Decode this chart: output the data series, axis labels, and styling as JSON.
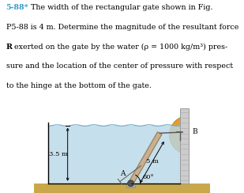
{
  "fig_bg": "#ffffff",
  "water_color": "#b8d8e8",
  "ground_color": "#c8a84b",
  "gate_color": "#c8b090",
  "gate_edge_color": "#9a8060",
  "wall_face_color": "#cccccc",
  "wall_edge_color": "#999999",
  "semi_color": "#e0a030",
  "semi_edge_color": "#b87820",
  "hinge_color": "#666666",
  "black": "#000000",
  "cyan_color": "#3399cc",
  "label_5m": "5 m",
  "label_35m": "3.5 m",
  "label_60": "60°",
  "label_A": "A",
  "label_B": "B",
  "text_line1_cyan": "5-88*",
  "text_line1_rest": "  The width of the rectangular gate shown in Fig.",
  "text_line2": "P5-88 is 4 m. Determine the magnitude of the resultant force",
  "text_line3_bold": "R",
  "text_line3_rest": " exerted on the gate by the water (ρ = 1000 kg/m³) pres-",
  "text_line4": "sure and the location of the center of pressure with respect",
  "text_line5": "to the hinge at the bottom of the gate."
}
